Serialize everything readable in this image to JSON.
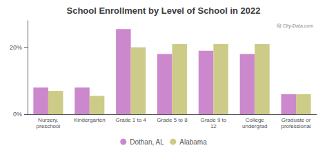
{
  "chart_data": {
    "type": "bar",
    "title": "School Enrollment by Level of School in 2022",
    "categories": [
      "Nursery,\npreschool",
      "Kindergarten",
      "Grade 1 to 4",
      "Grade 5 to 8",
      "Grade 9 to\n12",
      "College\nundergrad",
      "Graduate or\nprofessional"
    ],
    "series": [
      {
        "name": "Dothan, AL",
        "color": "#cc88cc",
        "values": [
          8.0,
          8.0,
          25.5,
          18.0,
          19.0,
          18.0,
          6.0
        ]
      },
      {
        "name": "Alabama",
        "color": "#cccc88",
        "values": [
          7.0,
          5.5,
          20.0,
          21.0,
          21.0,
          21.0,
          6.0
        ]
      }
    ],
    "ylim": [
      0,
      28
    ],
    "yticks": [
      {
        "value": 0,
        "label": "0%"
      },
      {
        "value": 20,
        "label": "20%"
      }
    ],
    "grid": false,
    "legend": "bottom",
    "annotations": [
      "Ⓜ City-Data.com"
    ]
  }
}
